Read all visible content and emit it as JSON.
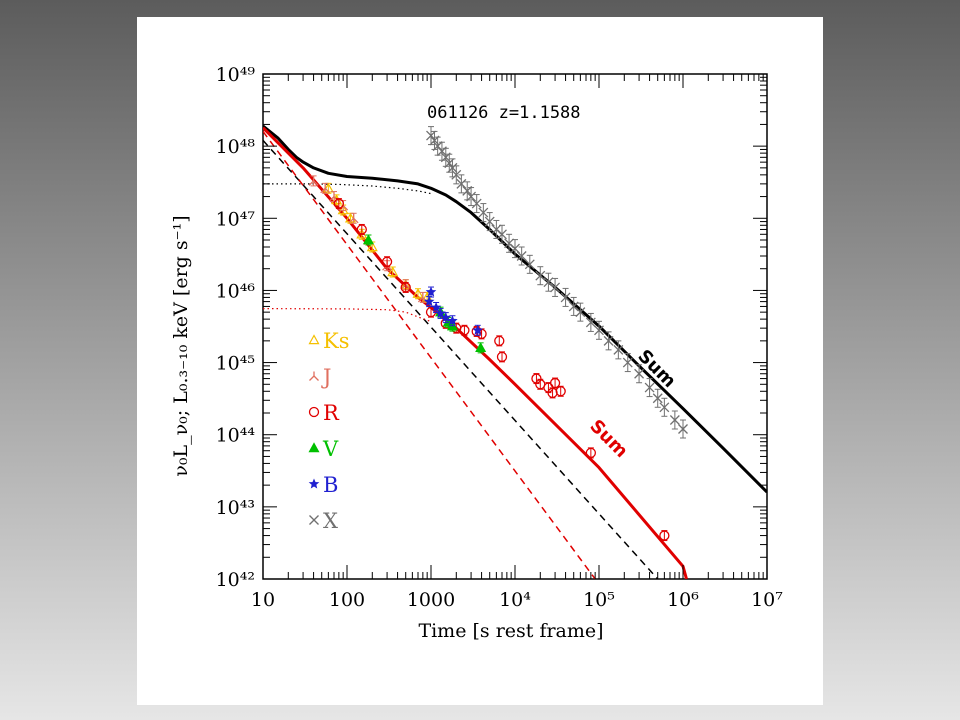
{
  "chart_data": {
    "type": "scatter",
    "title": "",
    "annotation": "061126   z=1.1588",
    "xlabel": "Time [s rest frame]",
    "ylabel": "ν₀L_ν₀;  L₀.₃₋₁₀ keV [erg s⁻¹]",
    "x_scale": "log",
    "y_scale": "log",
    "xlim": [
      10,
      10000000
    ],
    "ylim": [
      1e+42,
      1e+49
    ],
    "x_ticks": [
      {
        "value": 10,
        "label": "10"
      },
      {
        "value": 100,
        "label": "100"
      },
      {
        "value": 1000,
        "label": "1000"
      },
      {
        "value": 10000,
        "label": "10⁴"
      },
      {
        "value": 100000,
        "label": "10⁵"
      },
      {
        "value": 1000000,
        "label": "10⁶"
      },
      {
        "value": 10000000,
        "label": "10⁷"
      }
    ],
    "y_ticks": [
      {
        "value": 1e+42,
        "label": "10⁴²"
      },
      {
        "value": 1e+43,
        "label": "10⁴³"
      },
      {
        "value": 1e+44,
        "label": "10⁴⁴"
      },
      {
        "value": 1e+45,
        "label": "10⁴⁵"
      },
      {
        "value": 1e+46,
        "label": "10⁴⁶"
      },
      {
        "value": 1e+47,
        "label": "10⁴⁷"
      },
      {
        "value": 1e+48,
        "label": "10⁴⁸"
      },
      {
        "value": 1e+49,
        "label": "10⁴⁹"
      }
    ],
    "legend_position": "left-bottom inside",
    "legend": [
      {
        "name": "Ks",
        "marker": "△",
        "color": "#f5c000"
      },
      {
        "name": "J",
        "marker": "⅄",
        "color": "#e07060"
      },
      {
        "name": "R",
        "marker": "○",
        "color": "#e00000"
      },
      {
        "name": "V",
        "marker": "▲",
        "color": "#00c000"
      },
      {
        "name": "B",
        "marker": "★",
        "color": "#2020d0"
      },
      {
        "name": "X",
        "marker": "×",
        "color": "#707070"
      }
    ],
    "sum_labels": [
      {
        "text": "Sum",
        "color": "#000000"
      },
      {
        "text": "Sum",
        "color": "#e00000"
      }
    ],
    "series": [
      {
        "name": "X",
        "color": "#707070",
        "marker": "x",
        "points": [
          [
            1000,
            1.4e+48
          ],
          [
            1100,
            1.2e+48
          ],
          [
            1200,
            1e+48
          ],
          [
            1350,
            8.5e+47
          ],
          [
            1500,
            7e+47
          ],
          [
            1650,
            5.8e+47
          ],
          [
            1800,
            5e+47
          ],
          [
            2000,
            4e+47
          ],
          [
            2300,
            3e+47
          ],
          [
            2700,
            2.4e+47
          ],
          [
            3000,
            2e+47
          ],
          [
            3500,
            1.6e+47
          ],
          [
            4200,
            1.2e+47
          ],
          [
            5000,
            9e+46
          ],
          [
            6000,
            7e+46
          ],
          [
            7000,
            6e+46
          ],
          [
            8500,
            4.5e+46
          ],
          [
            10000,
            3.8e+46
          ],
          [
            12000,
            3e+46
          ],
          [
            15000,
            2.3e+46
          ],
          [
            20000,
            1.6e+46
          ],
          [
            25000,
            1.3e+46
          ],
          [
            30000,
            1.1e+46
          ],
          [
            40000,
            8e+45
          ],
          [
            50000,
            6e+45
          ],
          [
            60000,
            5e+45
          ],
          [
            80000,
            3.6e+45
          ],
          [
            100000,
            2.8e+45
          ],
          [
            130000,
            2e+45
          ],
          [
            170000,
            1.5e+45
          ],
          [
            220000,
            1e+45
          ],
          [
            300000,
            7e+44
          ],
          [
            400000,
            4.5e+44
          ],
          [
            500000,
            3.2e+44
          ],
          [
            600000,
            2.4e+44
          ],
          [
            800000,
            1.6e+44
          ],
          [
            1000000,
            1.2e+44
          ]
        ]
      },
      {
        "name": "Ks",
        "color": "#f5c000",
        "marker": "tri",
        "points": [
          [
            60,
            2.6e+47
          ],
          [
            75,
            1.8e+47
          ],
          [
            90,
            1.3e+47
          ],
          [
            110,
            1e+47
          ],
          [
            150,
            6e+46
          ],
          [
            200,
            4e+46
          ],
          [
            350,
            1.8e+46
          ],
          [
            500,
            1.2e+46
          ],
          [
            700,
            9e+45
          ],
          [
            900,
            8e+45
          ]
        ]
      },
      {
        "name": "J",
        "color": "#e07060",
        "marker": "J",
        "points": [
          [
            40,
            3.3e+47
          ],
          [
            55,
            2.6e+47
          ],
          [
            70,
            2e+47
          ],
          [
            90,
            1.5e+47
          ],
          [
            120,
            1e+47
          ],
          [
            180,
            5e+46
          ],
          [
            300,
            2.2e+46
          ],
          [
            500,
            1.2e+46
          ],
          [
            800,
            8e+45
          ]
        ]
      },
      {
        "name": "R",
        "color": "#e00000",
        "marker": "circ",
        "points": [
          [
            80,
            1.6e+47
          ],
          [
            150,
            7e+46
          ],
          [
            300,
            2.5e+46
          ],
          [
            500,
            1.1e+46
          ],
          [
            1000,
            5e+45
          ],
          [
            1500,
            3.5e+45
          ],
          [
            2000,
            3e+45
          ],
          [
            2500,
            2.8e+45
          ],
          [
            3500,
            2.7e+45
          ],
          [
            4000,
            2.5e+45
          ],
          [
            6500,
            2e+45
          ],
          [
            7000,
            1.2e+45
          ],
          [
            18000,
            6e+44
          ],
          [
            20000,
            5e+44
          ],
          [
            25000,
            4.5e+44
          ],
          [
            28000,
            3.8e+44
          ],
          [
            30000,
            5.2e+44
          ],
          [
            35000,
            4e+44
          ],
          [
            80000,
            5.6e+43
          ],
          [
            600000,
            4e+42
          ]
        ]
      },
      {
        "name": "V",
        "color": "#00c000",
        "marker": "filltri",
        "points": [
          [
            180,
            5e+46
          ],
          [
            1300,
            5e+45
          ],
          [
            1600,
            3.6e+45
          ],
          [
            1800,
            3.2e+45
          ],
          [
            3900,
            1.6e+45
          ]
        ]
      },
      {
        "name": "B",
        "color": "#2020d0",
        "marker": "star",
        "points": [
          [
            950,
            7e+45
          ],
          [
            1000,
            9.5e+45
          ],
          [
            1150,
            5.8e+45
          ],
          [
            1300,
            4.8e+45
          ],
          [
            1500,
            4.2e+45
          ],
          [
            1800,
            3.8e+45
          ],
          [
            3600,
            2.8e+45
          ]
        ]
      }
    ],
    "lines": [
      {
        "name": "X total model",
        "color": "#000000",
        "style": "solid",
        "width": 3,
        "points": [
          [
            10,
            1.9e+48
          ],
          [
            15,
            1.3e+48
          ],
          [
            20,
            9e+47
          ],
          [
            25,
            7e+47
          ],
          [
            30,
            6e+47
          ],
          [
            40,
            5e+47
          ],
          [
            60,
            4.2e+47
          ],
          [
            100,
            3.8e+47
          ],
          [
            200,
            3.6e+47
          ],
          [
            400,
            3.3e+47
          ],
          [
            700,
            3e+47
          ],
          [
            1000,
            2.6e+47
          ],
          [
            1500,
            2.1e+47
          ],
          [
            2000,
            1.7e+47
          ],
          [
            3000,
            1.2e+47
          ],
          [
            5000,
            7e+46
          ],
          [
            10000,
            3.2e+46
          ],
          [
            30000,
            1.1e+46
          ],
          [
            100000,
            3.2e+45
          ],
          [
            300000,
            9e+44
          ],
          [
            1000000,
            2.3e+44
          ],
          [
            3000000,
            6.5e+43
          ],
          [
            10000000,
            1.6e+43
          ]
        ]
      },
      {
        "name": "X plateau component",
        "color": "#000000",
        "style": "dotted",
        "width": 1.2,
        "points": [
          [
            10,
            3e+47
          ],
          [
            40,
            3e+47
          ],
          [
            80,
            2.95e+47
          ],
          [
            200,
            2.8e+47
          ],
          [
            400,
            2.6e+47
          ],
          [
            700,
            2.4e+47
          ],
          [
            1000,
            2.2e+47
          ]
        ]
      },
      {
        "name": "X prompt decay",
        "color": "#000000",
        "style": "dashed",
        "width": 1.5,
        "points": [
          [
            10,
            1.2e+48
          ],
          [
            500000,
            1e+42
          ]
        ]
      },
      {
        "name": "Optical total model",
        "color": "#e00000",
        "style": "solid",
        "width": 3,
        "points": [
          [
            10,
            1.8e+48
          ],
          [
            30,
            5e+47
          ],
          [
            100,
            1e+47
          ],
          [
            300,
            2e+46
          ],
          [
            700,
            8e+45
          ],
          [
            1000,
            5.8e+45
          ],
          [
            2000,
            3e+45
          ],
          [
            5000,
            1.1e+45
          ],
          [
            10000,
            5e+44
          ],
          [
            100000,
            3.5e+43
          ],
          [
            1000000,
            1.5e+42
          ],
          [
            1100000,
            1e+42
          ]
        ]
      },
      {
        "name": "Optical plateau component",
        "color": "#e00000",
        "style": "dotted",
        "width": 1.2,
        "points": [
          [
            10,
            5.6e+45
          ],
          [
            100,
            5.55e+45
          ],
          [
            300,
            5.4e+45
          ],
          [
            500,
            5e+45
          ],
          [
            700,
            4.3e+45
          ],
          [
            1000,
            3.7e+45
          ]
        ]
      },
      {
        "name": "Optical prompt decay",
        "color": "#e00000",
        "style": "dashed",
        "width": 1.5,
        "points": [
          [
            10,
            1.6e+48
          ],
          [
            90000,
            1e+42
          ]
        ]
      }
    ]
  }
}
